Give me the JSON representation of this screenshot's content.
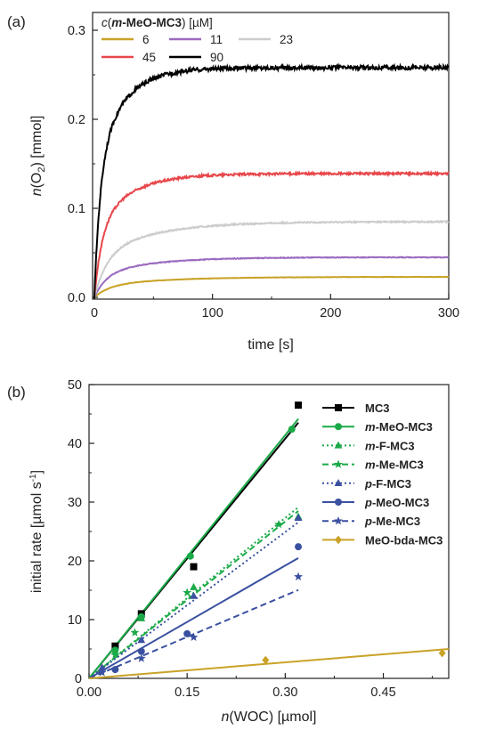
{
  "chart_data": [
    {
      "type": "line",
      "panel_label": "(a)",
      "xlabel": "time [s]",
      "ylabel": "n(O₂) [mmol]",
      "ylabel_parts": {
        "n": "n",
        "open": "(O",
        "sub": "2",
        "close": ") [mmol]"
      },
      "xlim": [
        0,
        300
      ],
      "ylim": [
        0,
        0.32
      ],
      "xticks": [
        0,
        100,
        200,
        300
      ],
      "yticks": [
        0.0,
        0.1,
        0.2,
        0.3
      ],
      "ytick_labels": [
        "0.0",
        "0.1",
        "0.2",
        "0.3"
      ],
      "legend_title": "c(m-MeO-MC3) [µM]",
      "legend_title_parts": {
        "c": "c",
        "open": "(",
        "m": "m",
        "rest": "-MeO-MC3",
        "close": ")",
        "unit": " [µM]"
      },
      "legend_placement": "top-left",
      "grid": false,
      "series": [
        {
          "name": "6",
          "color": "#c9a227",
          "plateau": 0.023,
          "tau": 35,
          "initial": 0.0
        },
        {
          "name": "11",
          "color": "#9b6bbf",
          "plateau": 0.045,
          "tau": 28,
          "initial": 0.0
        },
        {
          "name": "23",
          "color": "#cccccc",
          "plateau": 0.085,
          "tau": 30,
          "initial": 0.0
        },
        {
          "name": "45",
          "color": "#e8474b",
          "plateau": 0.139,
          "tau": 18,
          "initial": 0.0
        },
        {
          "name": "90",
          "color": "#000000",
          "plateau": 0.258,
          "tau": 14,
          "initial": 0.0
        }
      ]
    },
    {
      "type": "scatter",
      "panel_label": "(b)",
      "xlabel": "n(WOC) [µmol]",
      "xlabel_parts": {
        "n": "n",
        "rest": "(WOC) [µmol]"
      },
      "ylabel": "initial rate [µmol s⁻¹]",
      "ylabel_parts": {
        "main": "initial rate [µmol s",
        "sup": "-1",
        "close": "]"
      },
      "xlim": [
        0,
        0.55
      ],
      "ylim": [
        0,
        50
      ],
      "xticks": [
        0.0,
        0.15,
        0.3,
        0.45
      ],
      "xtick_labels": [
        "0.00",
        "0.15",
        "0.30",
        "0.45"
      ],
      "yticks": [
        0,
        10,
        20,
        30,
        40,
        50
      ],
      "legend_placement": "top-right",
      "grid": false,
      "series": [
        {
          "name": "MC3",
          "prefix": "",
          "rest": "MC3",
          "color": "#000000",
          "marker": "square",
          "dash": "solid",
          "x": [
            0.04,
            0.08,
            0.16,
            0.32
          ],
          "y": [
            5.5,
            11.0,
            19.0,
            46.5
          ],
          "fit_slope": 136,
          "fit_xmax": 0.32
        },
        {
          "name": "m-MeO-MC3",
          "prefix": "m",
          "rest": "-MeO-MC3",
          "color": "#1aaa48",
          "marker": "circle",
          "dash": "solid",
          "x": [
            0.04,
            0.08,
            0.155,
            0.31
          ],
          "y": [
            4.8,
            10.5,
            20.8,
            42.4
          ],
          "fit_slope": 138,
          "fit_xmax": 0.32
        },
        {
          "name": "m-F-MC3",
          "prefix": "m",
          "rest": "-F-MC3",
          "color": "#1aaa48",
          "marker": "triangle",
          "dash": "dotted",
          "x": [
            0.04,
            0.08,
            0.16,
            0.32
          ],
          "y": [
            4.5,
            10.2,
            15.5,
            27.5
          ],
          "fit_slope": 91,
          "fit_xmax": 0.32
        },
        {
          "name": "m-Me-MC3",
          "prefix": "m",
          "rest": "-Me-MC3",
          "color": "#1aaa48",
          "marker": "star",
          "dash": "dashed",
          "x": [
            0.04,
            0.07,
            0.15,
            0.29
          ],
          "y": [
            4.0,
            7.8,
            14.6,
            26.2
          ],
          "fit_slope": 89,
          "fit_xmax": 0.32
        },
        {
          "name": "p-F-MC3",
          "prefix": "p",
          "rest": "-F-MC3",
          "color": "#3a50a0",
          "marker": "triangle",
          "dash": "dotted",
          "x": [
            0.02,
            0.08,
            0.16,
            0.32
          ],
          "y": [
            1.8,
            6.5,
            14.0,
            27.3
          ],
          "fit_slope": 83,
          "fit_xmax": 0.32
        },
        {
          "name": "p-MeO-MC3",
          "prefix": "p",
          "rest": "-MeO-MC3",
          "color": "#3a50a0",
          "marker": "circle",
          "dash": "solid",
          "x": [
            0.04,
            0.08,
            0.15,
            0.32
          ],
          "y": [
            1.5,
            4.6,
            7.6,
            22.4
          ],
          "fit_slope": 64,
          "fit_xmax": 0.32
        },
        {
          "name": "p-Me-MC3",
          "prefix": "p",
          "rest": "-Me-MC3",
          "color": "#3a50a0",
          "marker": "star",
          "dash": "dashed",
          "x": [
            0.02,
            0.08,
            0.16,
            0.32
          ],
          "y": [
            1.0,
            3.4,
            7.0,
            17.3
          ],
          "fit_slope": 47,
          "fit_xmax": 0.32
        },
        {
          "name": "MeO-bda-MC3",
          "prefix": "",
          "rest": "MeO-bda-MC3",
          "color": "#c9a227",
          "marker": "diamond",
          "dash": "solid",
          "x": [
            0.27,
            0.54
          ],
          "y": [
            3.1,
            4.3
          ],
          "fit_slope": 9.1,
          "fit_xmax": 0.55
        }
      ]
    }
  ]
}
